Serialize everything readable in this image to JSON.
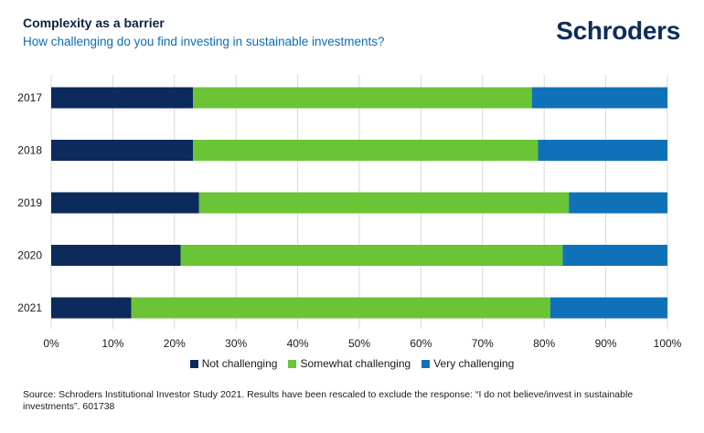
{
  "header": {
    "title": "Complexity as a barrier",
    "subtitle": "How challenging do you find investing in sustainable investments?",
    "logo_text": "Schroders"
  },
  "chart_data": {
    "type": "bar",
    "orientation": "horizontal",
    "stacked": true,
    "categories": [
      "2017",
      "2018",
      "2019",
      "2020",
      "2021"
    ],
    "series": [
      {
        "name": "Not challenging",
        "color": "#0c2a5c",
        "values": [
          23,
          23,
          24,
          21,
          13
        ]
      },
      {
        "name": "Somewhat challenging",
        "color": "#6ac435",
        "values": [
          55,
          56,
          60,
          62,
          68
        ]
      },
      {
        "name": "Very challenging",
        "color": "#0f72b8",
        "values": [
          22,
          21,
          16,
          17,
          19
        ]
      }
    ],
    "xlim": [
      0,
      100
    ],
    "xticks": [
      "0%",
      "10%",
      "20%",
      "30%",
      "40%",
      "50%",
      "60%",
      "70%",
      "80%",
      "90%",
      "100%"
    ],
    "grid": true,
    "legend_position": "bottom"
  },
  "footer": {
    "source": "Source: Schroders Institutional Investor Study 2021. Results have been rescaled to exclude the response: “I do not believe/invest in sustainable investments”. 601738"
  }
}
